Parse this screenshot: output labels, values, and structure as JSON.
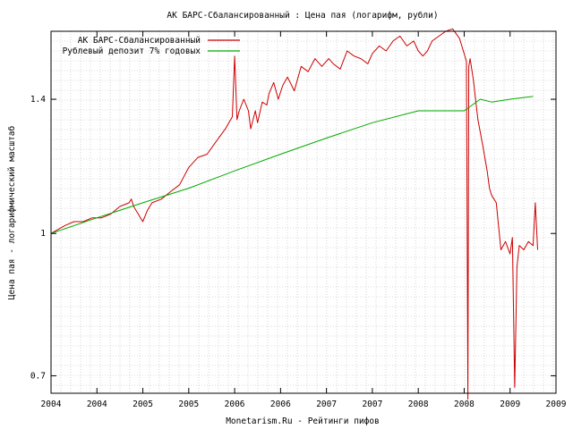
{
  "chart_data": {
    "type": "line",
    "title": "АК БАРС-Сбалансированный : Цена пая (логарифм, рубли)",
    "xlabel": "Monetarism.Ru - Рейтинги пифов",
    "ylabel": "Цена пая - логарифмический масштаб",
    "log_y": true,
    "grid": true,
    "legend_position": "top-left",
    "ylim": [
      0.67,
      1.66
    ],
    "xlim": [
      0,
      11
    ],
    "x_tick_labels": [
      "2004",
      "2004",
      "2005",
      "2005",
      "2006",
      "2006",
      "2007",
      "2007",
      "2008",
      "2008",
      "2009",
      "2009"
    ],
    "y_ticks": [
      {
        "value": 0.7,
        "label": "0.7"
      },
      {
        "value": 1.0,
        "label": "1"
      },
      {
        "value": 1.4,
        "label": "1.4"
      }
    ],
    "series": [
      {
        "name": "АК БАРС-Сбалансированный",
        "color": "#cc0000",
        "x": [
          0.0,
          0.15,
          0.3,
          0.5,
          0.7,
          0.9,
          1.1,
          1.3,
          1.5,
          1.7,
          1.75,
          1.8,
          1.9,
          2.0,
          2.1,
          2.2,
          2.4,
          2.6,
          2.8,
          3.0,
          3.2,
          3.4,
          3.6,
          3.8,
          3.95,
          4.0,
          4.05,
          4.1,
          4.2,
          4.3,
          4.35,
          4.45,
          4.5,
          4.6,
          4.7,
          4.75,
          4.85,
          4.95,
          5.05,
          5.15,
          5.3,
          5.45,
          5.6,
          5.75,
          5.9,
          6.05,
          6.15,
          6.3,
          6.45,
          6.6,
          6.75,
          6.9,
          7.0,
          7.15,
          7.3,
          7.45,
          7.6,
          7.75,
          7.9,
          8.0,
          8.1,
          8.2,
          8.3,
          8.45,
          8.6,
          8.75,
          8.9,
          9.05,
          9.08,
          9.1,
          9.13,
          9.2,
          9.3,
          9.4,
          9.5,
          9.55,
          9.6,
          9.7,
          9.8,
          9.9,
          10.0,
          10.05,
          10.1,
          10.15,
          10.2,
          10.3,
          10.4,
          10.5,
          10.55,
          10.6
        ],
        "y": [
          1.0,
          1.01,
          1.02,
          1.03,
          1.03,
          1.04,
          1.04,
          1.05,
          1.07,
          1.08,
          1.09,
          1.07,
          1.05,
          1.03,
          1.06,
          1.08,
          1.09,
          1.11,
          1.13,
          1.18,
          1.21,
          1.22,
          1.26,
          1.3,
          1.34,
          1.56,
          1.33,
          1.36,
          1.4,
          1.36,
          1.3,
          1.36,
          1.32,
          1.39,
          1.38,
          1.42,
          1.46,
          1.4,
          1.45,
          1.48,
          1.43,
          1.52,
          1.5,
          1.55,
          1.52,
          1.55,
          1.53,
          1.51,
          1.58,
          1.56,
          1.55,
          1.53,
          1.57,
          1.6,
          1.58,
          1.62,
          1.64,
          1.6,
          1.62,
          1.58,
          1.56,
          1.58,
          1.62,
          1.64,
          1.66,
          1.67,
          1.63,
          1.54,
          0.66,
          1.52,
          1.55,
          1.47,
          1.33,
          1.25,
          1.17,
          1.12,
          1.1,
          1.08,
          0.96,
          0.98,
          0.95,
          0.99,
          0.68,
          0.92,
          0.97,
          0.96,
          0.98,
          0.97,
          1.08,
          0.96
        ]
      },
      {
        "name": "Рублевый депозит 7% годовых",
        "color": "#00aa00",
        "x": [
          0.0,
          1.0,
          2.0,
          3.0,
          4.0,
          5.0,
          6.0,
          7.0,
          8.0,
          9.0,
          9.35,
          9.6,
          10.0,
          10.5
        ],
        "y": [
          1.0,
          1.04,
          1.08,
          1.12,
          1.17,
          1.22,
          1.27,
          1.32,
          1.36,
          1.36,
          1.4,
          1.39,
          1.4,
          1.41
        ]
      }
    ]
  }
}
